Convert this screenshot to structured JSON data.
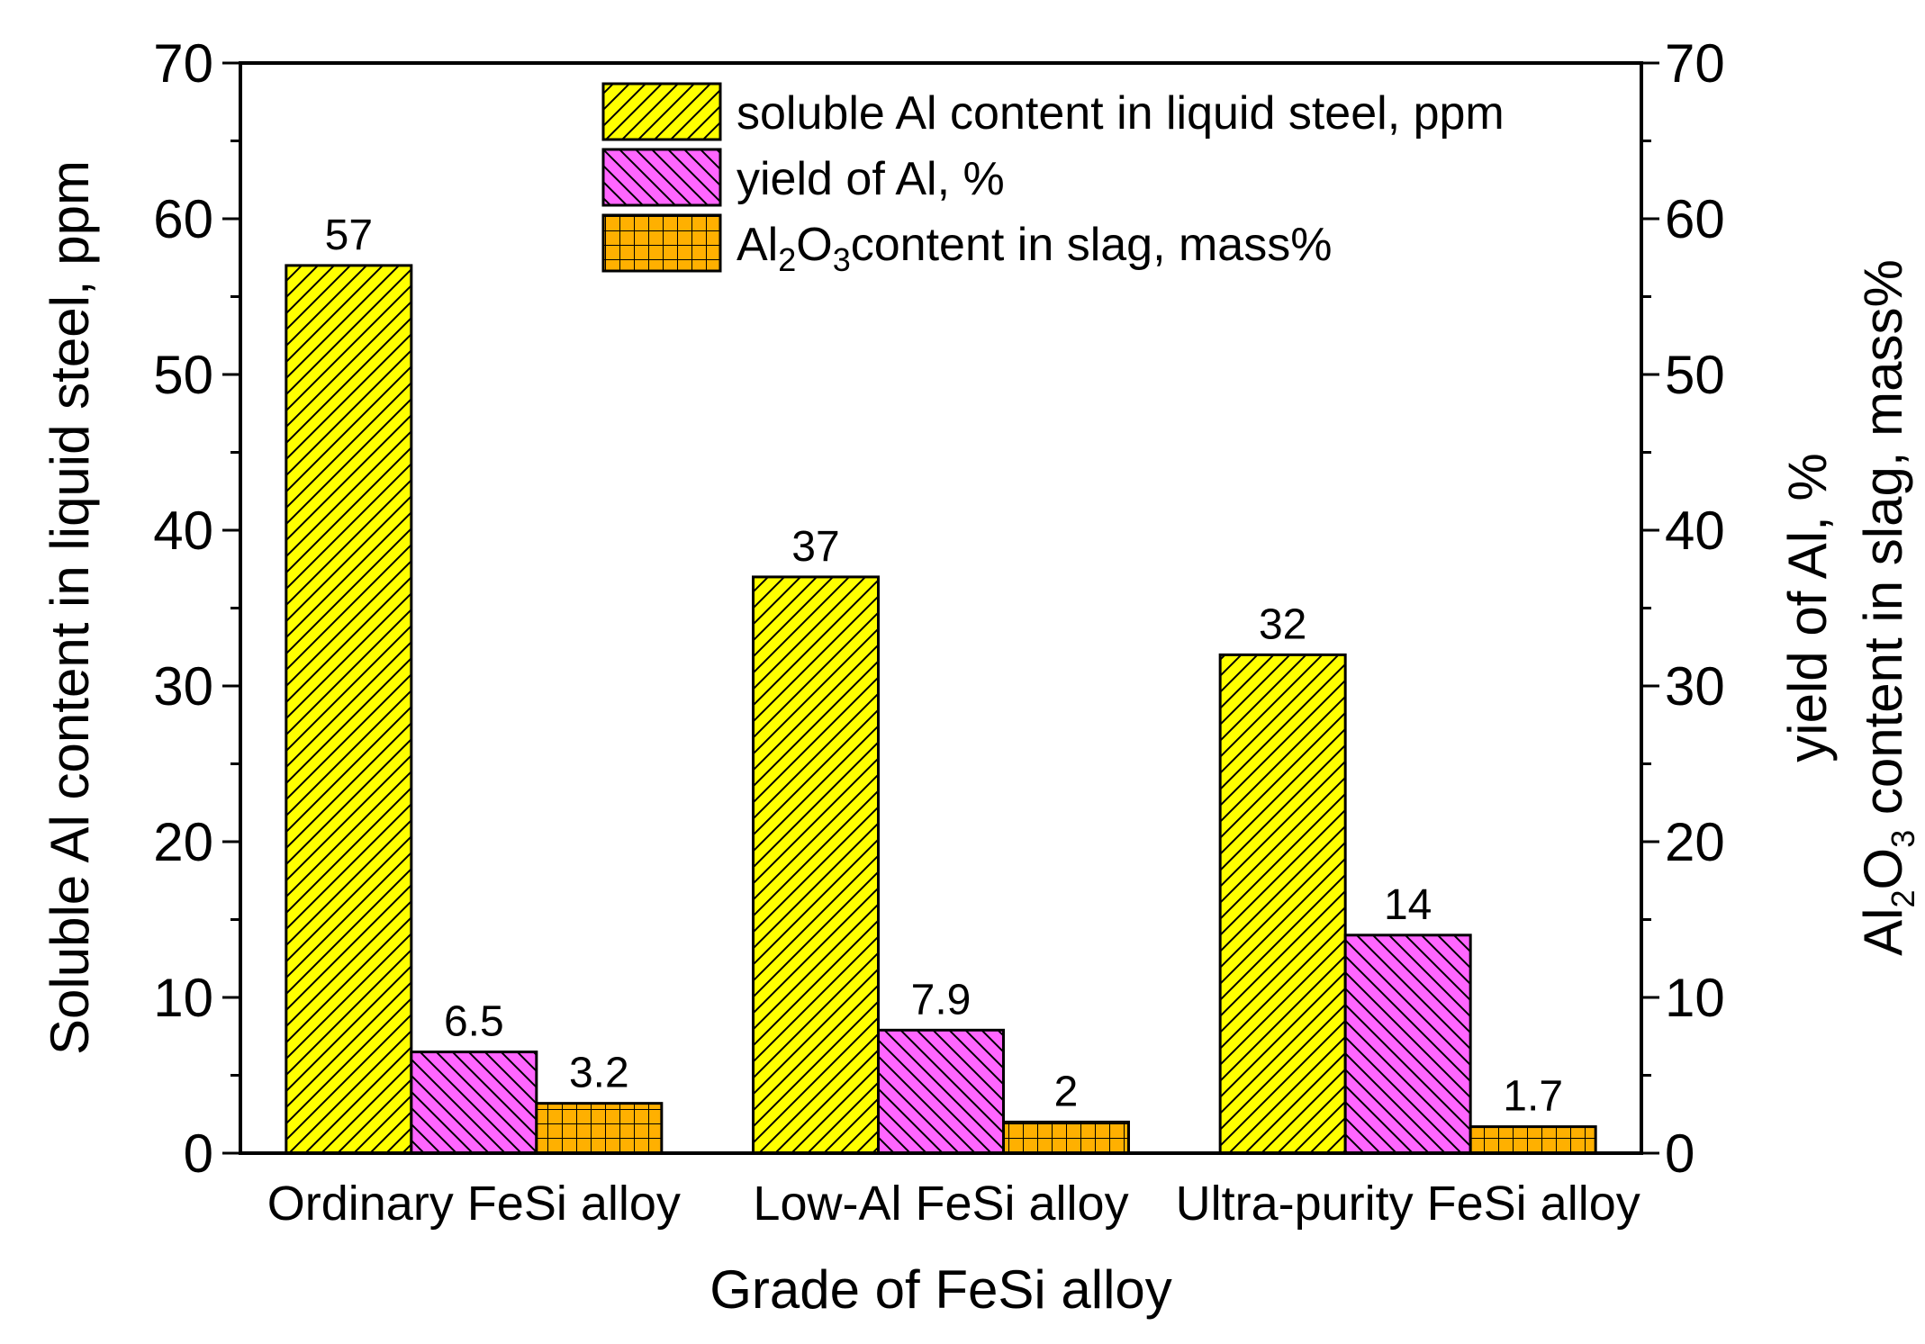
{
  "chart_data": {
    "type": "bar",
    "xlabel": "Grade of FeSi alloy",
    "ylabel_left": "Soluble Al content in liquid steel, ppm",
    "ylabel_right_line1": "yield of Al, %",
    "ylabel_right_line2": {
      "pre": "Al",
      "sub1": "2",
      "mid": "O",
      "sub2": "3",
      "post": " content in slag, mass%"
    },
    "ylim": [
      0,
      70
    ],
    "yticks": [
      0,
      10,
      20,
      30,
      40,
      50,
      60,
      70
    ],
    "categories": [
      "Ordinary FeSi alloy",
      "Low-Al FeSi alloy",
      "Ultra-purity FeSi alloy"
    ],
    "series": [
      {
        "name": "soluble Al content in liquid steel, ppm",
        "values": [
          57,
          37,
          32
        ],
        "labels": [
          "57",
          "37",
          "32"
        ],
        "color": "#ffff00",
        "pattern": "diag-up"
      },
      {
        "name": "yield of Al, %",
        "values": [
          6.5,
          7.9,
          14
        ],
        "labels": [
          "6.5",
          "7.9",
          "14"
        ],
        "color": "#ff66ff",
        "pattern": "diag-down"
      },
      {
        "name_parts": {
          "pre": "Al",
          "sub1": "2",
          "mid": "O",
          "sub2": "3",
          "post": "content in slag, mass%"
        },
        "values": [
          3.2,
          2,
          1.7
        ],
        "labels": [
          "3.2",
          "2",
          "1.7"
        ],
        "color": "#ffb000",
        "pattern": "grid"
      }
    ],
    "legend_position": "top-right",
    "grid": false
  }
}
